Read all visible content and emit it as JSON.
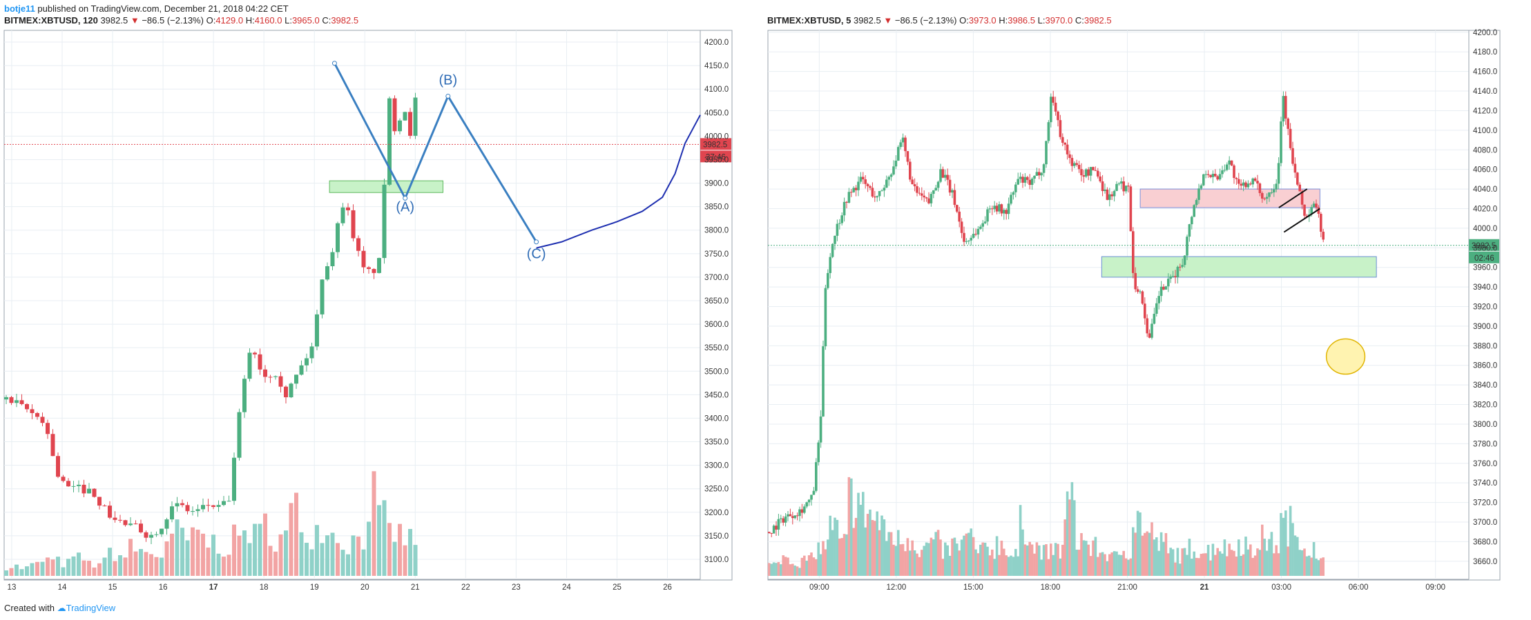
{
  "header": {
    "user": "botje11",
    "published": "published on TradingView.com, December 21, 2018 04:22 CET"
  },
  "footer": {
    "created_with": "Created with",
    "brand": "TradingView"
  },
  "colors": {
    "up": "#4caf80",
    "down": "#e0454f",
    "up_vol": "#8fd1c8",
    "down_vol": "#f2a4a4",
    "grid": "#e8eef3",
    "wave_line": "#3a7fc1",
    "projection": "#1e2fb0",
    "zone_green": "#c8f2c8",
    "zone_red": "#f9cfd2",
    "price_tag": "#e0454f",
    "price_tag_right": "#4caf80"
  },
  "left": {
    "ticker": "BITMEX:XBTUSD, 120",
    "last": "3982.5",
    "change": "−86.5 (−2.13%)",
    "open_label": "O:",
    "open": "4129.0",
    "high_label": "H:",
    "high": "4160.0",
    "low_label": "L:",
    "low": "3965.0",
    "close_label": "C:",
    "close": "3982.5",
    "price_tag": "3982.5",
    "countdown": "37:46",
    "wave_labels": [
      "(A)",
      "(B)",
      "(C)"
    ]
  },
  "right": {
    "ticker": "BITMEX:XBTUSD, 5",
    "last": "3982.5",
    "change": "−86.5 (−2.13%)",
    "open_label": "O:",
    "open": "3973.0",
    "high_label": "H:",
    "high": "3986.5",
    "low_label": "L:",
    "low": "3970.0",
    "close_label": "C:",
    "close": "3982.5",
    "price_tag": "3982.5",
    "countdown": "02:46"
  },
  "chart_data": [
    {
      "type": "candlestick",
      "symbol": "BITMEX:XBTUSD",
      "interval": "120",
      "x_ticks": [
        "13",
        "14",
        "15",
        "16",
        "17",
        "18",
        "19",
        "20",
        "21",
        "22",
        "23",
        "24",
        "25",
        "26"
      ],
      "y_ticks": [
        3100,
        3150,
        3200,
        3250,
        3300,
        3350,
        3400,
        3450,
        3500,
        3550,
        3600,
        3650,
        3700,
        3750,
        3800,
        3850,
        3900,
        3950,
        4000,
        4050,
        4100,
        4150,
        4200
      ],
      "ylim": [
        3075,
        4225
      ],
      "xlim": [
        12.85,
        26.65
      ],
      "grid": true,
      "last_price": 3982.5,
      "close_path": [
        [
          12.85,
          3440
        ],
        [
          13.2,
          3420
        ],
        [
          13.6,
          3395
        ],
        [
          13.9,
          3270
        ],
        [
          14.1,
          3250
        ],
        [
          14.4,
          3250
        ],
        [
          14.6,
          3240
        ],
        [
          14.8,
          3205
        ],
        [
          15.0,
          3185
        ],
        [
          15.3,
          3170
        ],
        [
          15.5,
          3165
        ],
        [
          15.7,
          3148
        ],
        [
          15.9,
          3170
        ],
        [
          16.1,
          3205
        ],
        [
          16.3,
          3215
        ],
        [
          16.5,
          3200
        ],
        [
          16.7,
          3205
        ],
        [
          16.9,
          3218
        ],
        [
          17.1,
          3205
        ],
        [
          17.3,
          3235
        ],
        [
          17.45,
          3395
        ],
        [
          17.7,
          3560
        ],
        [
          17.95,
          3490
        ],
        [
          18.2,
          3500
        ],
        [
          18.4,
          3450
        ],
        [
          18.7,
          3510
        ],
        [
          18.95,
          3560
        ],
        [
          19.1,
          3700
        ],
        [
          19.3,
          3750
        ],
        [
          19.55,
          3870
        ],
        [
          19.8,
          3760
        ],
        [
          19.95,
          3710
        ],
        [
          20.1,
          3710
        ],
        [
          20.3,
          3740
        ],
        [
          20.4,
          4095
        ],
        [
          20.55,
          4020
        ],
        [
          20.75,
          4060
        ],
        [
          20.9,
          3990
        ],
        [
          21.0,
          4129
        ],
        [
          21.1,
          3982.5
        ]
      ],
      "volume_relative": [
        0.12,
        0.1,
        0.14,
        0.2,
        0.18,
        0.16,
        0.22,
        0.15,
        0.17,
        0.3,
        0.25,
        0.35,
        0.3,
        0.27,
        0.4,
        0.55,
        0.45,
        0.5,
        0.42,
        0.38,
        0.46,
        0.6,
        0.5,
        0.65,
        0.48,
        0.8,
        0.62,
        0.58,
        0.7,
        0.52,
        0.44,
        0.5,
        1.0,
        0.68,
        0.55,
        0.5,
        0.45
      ],
      "drawings": {
        "wave_points": [
          [
            19.4,
            4155
          ],
          [
            20.8,
            3868
          ],
          [
            21.65,
            4085
          ],
          [
            23.4,
            3775
          ]
        ],
        "wave_labels": [
          [
            20.8,
            3840
          ],
          [
            21.65,
            4110
          ],
          [
            23.4,
            3740
          ]
        ],
        "projection": [
          [
            23.4,
            3762
          ],
          [
            23.9,
            3775
          ],
          [
            24.5,
            3800
          ],
          [
            25.0,
            3818
          ],
          [
            25.5,
            3840
          ],
          [
            25.9,
            3870
          ],
          [
            26.15,
            3920
          ],
          [
            26.35,
            3985
          ],
          [
            26.65,
            4045
          ]
        ],
        "zone": {
          "x": [
            19.3,
            21.55
          ],
          "y": [
            3880,
            3905
          ]
        }
      }
    },
    {
      "type": "candlestick",
      "symbol": "BITMEX:XBTUSD",
      "interval": "5",
      "x_ticks": [
        "09:00",
        "12:00",
        "15:00",
        "18:00",
        "21:00",
        "21",
        "03:00",
        "06:00",
        "09:00"
      ],
      "x_ticks_hours": [
        9,
        12,
        15,
        18,
        21,
        24,
        27,
        30,
        33
      ],
      "y_ticks": [
        3660,
        3680,
        3700,
        3720,
        3740,
        3760,
        3780,
        3800,
        3820,
        3840,
        3860,
        3880,
        3900,
        3920,
        3940,
        3960,
        3980,
        4000,
        4020,
        4040,
        4060,
        4080,
        4100,
        4120,
        4140,
        4160,
        4180,
        4200
      ],
      "ylim": [
        3650,
        4202
      ],
      "xlim": [
        7.0,
        34.3
      ],
      "grid": true,
      "last_price": 3982.5,
      "close_path": [
        [
          7.0,
          3690
        ],
        [
          7.6,
          3705
        ],
        [
          8.2,
          3712
        ],
        [
          8.7,
          3725
        ],
        [
          9.0,
          3800
        ],
        [
          9.2,
          3945
        ],
        [
          9.5,
          3990
        ],
        [
          10.0,
          4030
        ],
        [
          10.6,
          4050
        ],
        [
          11.2,
          4030
        ],
        [
          11.7,
          4055
        ],
        [
          12.2,
          4090
        ],
        [
          12.6,
          4040
        ],
        [
          13.2,
          4025
        ],
        [
          13.7,
          4060
        ],
        [
          14.2,
          4030
        ],
        [
          14.6,
          3985
        ],
        [
          15.2,
          4000
        ],
        [
          15.7,
          4025
        ],
        [
          16.2,
          4015
        ],
        [
          16.7,
          4050
        ],
        [
          17.2,
          4045
        ],
        [
          17.7,
          4065
        ],
        [
          18.0,
          4140
        ],
        [
          18.3,
          4100
        ],
        [
          18.7,
          4070
        ],
        [
          19.2,
          4055
        ],
        [
          19.7,
          4060
        ],
        [
          20.2,
          4030
        ],
        [
          20.6,
          4045
        ],
        [
          21.0,
          4040
        ],
        [
          21.2,
          3945
        ],
        [
          21.5,
          3930
        ],
        [
          21.8,
          3885
        ],
        [
          22.2,
          3935
        ],
        [
          22.6,
          3945
        ],
        [
          23.1,
          3965
        ],
        [
          23.5,
          4020
        ],
        [
          24.0,
          4060
        ],
        [
          24.4,
          4050
        ],
        [
          24.9,
          4070
        ],
        [
          25.3,
          4040
        ],
        [
          25.8,
          4050
        ],
        [
          26.3,
          4030
        ],
        [
          26.8,
          4050
        ],
        [
          27.0,
          4140
        ],
        [
          27.3,
          4080
        ],
        [
          27.6,
          4040
        ],
        [
          27.9,
          4010
        ],
        [
          28.3,
          4025
        ],
        [
          28.6,
          3985
        ],
        [
          28.75,
          3982.5
        ]
      ],
      "volume_relative": [
        0.12,
        0.2,
        0.15,
        0.18,
        0.3,
        0.5,
        0.35,
        0.85,
        0.7,
        0.6,
        0.45,
        0.38,
        0.42,
        0.3,
        0.36,
        0.28,
        0.33,
        0.4,
        0.26,
        0.3,
        0.35,
        0.22,
        0.55,
        0.3,
        0.25,
        0.28,
        0.75,
        0.4,
        0.3,
        0.25,
        0.2,
        0.28,
        0.6,
        0.45,
        0.35,
        0.25,
        0.22,
        0.3,
        0.27,
        0.33,
        0.3,
        0.36,
        0.25,
        0.4,
        0.35,
        0.55,
        0.48,
        0.3,
        0.15
      ],
      "drawings": {
        "zone_red": {
          "x": [
            21.5,
            28.5
          ],
          "y": [
            4021,
            4040
          ]
        },
        "zone_green": {
          "x": [
            20.0,
            30.7
          ],
          "y": [
            3950,
            3971
          ]
        },
        "trend_lines": [
          [
            [
              26.9,
              4021
            ],
            [
              28.0,
              4040
            ]
          ],
          [
            [
              27.1,
              3996
            ],
            [
              28.5,
              4020
            ]
          ]
        ],
        "ellipse": {
          "center": [
            29.5,
            3869
          ],
          "rx_hours": 0.75,
          "ry": 6
        }
      }
    }
  ]
}
